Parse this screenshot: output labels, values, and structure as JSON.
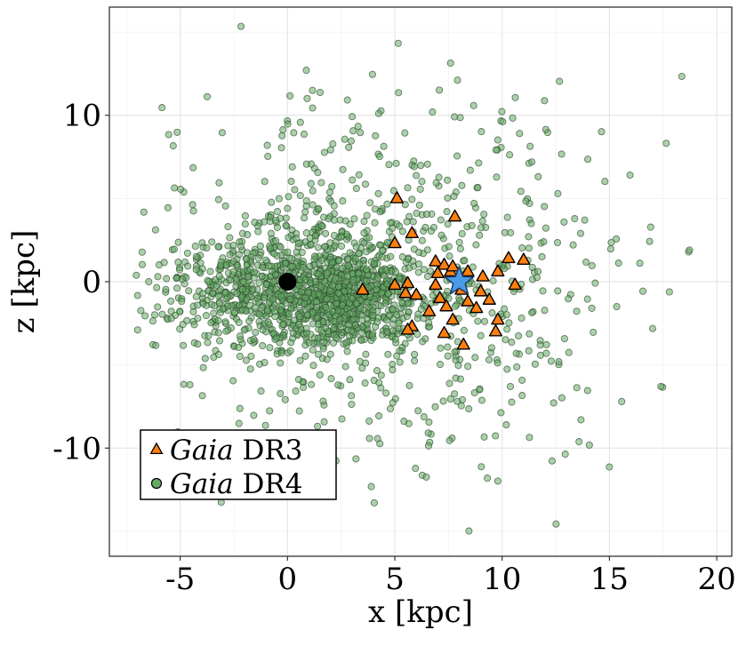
{
  "chart_data": {
    "type": "scatter",
    "xlabel": "x [kpc]",
    "ylabel": "z [kpc]",
    "xlim": [
      -8.3,
      20.7
    ],
    "ylim": [
      -16.5,
      16.5
    ],
    "x_ticks": [
      -5,
      0,
      5,
      10,
      15,
      20
    ],
    "y_ticks": [
      -10,
      0,
      10
    ],
    "x_tick_labels": [
      "-5",
      "0",
      "5",
      "10",
      "15",
      "20"
    ],
    "y_tick_labels": [
      "-10",
      "0",
      "10"
    ],
    "grid": true,
    "legend_position": "bottom-left",
    "legend": [
      {
        "series": "dr3",
        "italic": "Gaia",
        "rest": " DR3"
      },
      {
        "series": "dr4",
        "italic": "Gaia",
        "rest": " DR4"
      }
    ],
    "series": [
      {
        "id": "dr3",
        "name": "Gaia DR3",
        "marker": "triangle",
        "color": "#ff7f0e",
        "points": [
          [
            5.1,
            5.0
          ],
          [
            7.8,
            3.9
          ],
          [
            5.8,
            2.9
          ],
          [
            5.0,
            2.3
          ],
          [
            6.9,
            1.2
          ],
          [
            7.3,
            1.0
          ],
          [
            7.6,
            0.6
          ],
          [
            7.0,
            0.5
          ],
          [
            7.7,
            0.9
          ],
          [
            8.4,
            0.6
          ],
          [
            9.1,
            0.3
          ],
          [
            9.8,
            0.6
          ],
          [
            10.3,
            1.4
          ],
          [
            11.0,
            1.3
          ],
          [
            10.6,
            -0.2
          ],
          [
            5.0,
            -0.2
          ],
          [
            5.6,
            -0.1
          ],
          [
            6.9,
            -0.2
          ],
          [
            8.1,
            -0.5
          ],
          [
            9.0,
            -0.6
          ],
          [
            3.5,
            -0.5
          ],
          [
            5.5,
            -0.7
          ],
          [
            6.0,
            -0.8
          ],
          [
            7.1,
            -1.0
          ],
          [
            8.4,
            -1.2
          ],
          [
            9.4,
            -1.1
          ],
          [
            6.6,
            -1.8
          ],
          [
            7.4,
            -1.5
          ],
          [
            8.8,
            -1.6
          ],
          [
            7.7,
            -2.3
          ],
          [
            9.8,
            -2.3
          ],
          [
            5.8,
            -2.7
          ],
          [
            5.6,
            -2.9
          ],
          [
            7.3,
            -3.1
          ],
          [
            9.7,
            -3.0
          ],
          [
            8.2,
            -3.8
          ]
        ]
      },
      {
        "id": "dr4",
        "name": "Gaia DR4",
        "marker": "circle",
        "color": "#66aa66",
        "generated": {
          "count": 1900,
          "seed": 7,
          "components": [
            {
              "weight": 0.42,
              "cx": 0.0,
              "cz": -0.6,
              "sx": 2.6,
              "sz": 1.9
            },
            {
              "weight": 0.18,
              "cx": 3.0,
              "cz": -0.8,
              "sx": 1.4,
              "sz": 1.2
            },
            {
              "weight": 0.4,
              "cx": 4.5,
              "cz": 0.0,
              "sx": 5.5,
              "sz": 5.8
            }
          ]
        }
      }
    ],
    "markers": [
      {
        "name": "Galactic Centre",
        "shape": "circle",
        "x": 0.0,
        "z": 0.0,
        "color": "#000000"
      },
      {
        "name": "Sun",
        "shape": "star",
        "x": 8.0,
        "z": 0.0,
        "color": "#4c9be8"
      }
    ]
  }
}
